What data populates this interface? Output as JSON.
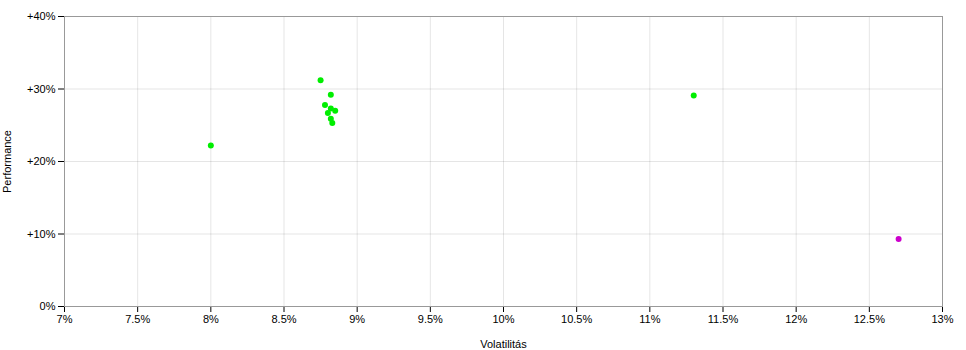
{
  "chart_data": {
    "type": "scatter",
    "xlabel": "Volatilitás",
    "ylabel": "Performance",
    "xlim": [
      0.07,
      0.13
    ],
    "ylim": [
      0.0,
      0.4
    ],
    "xticks": [
      {
        "value": 0.07,
        "label": "7%"
      },
      {
        "value": 0.075,
        "label": "7.5%"
      },
      {
        "value": 0.08,
        "label": "8%"
      },
      {
        "value": 0.085,
        "label": "8.5%"
      },
      {
        "value": 0.09,
        "label": "9%"
      },
      {
        "value": 0.095,
        "label": "9.5%"
      },
      {
        "value": 0.1,
        "label": "10%"
      },
      {
        "value": 0.105,
        "label": "10.5%"
      },
      {
        "value": 0.11,
        "label": "11%"
      },
      {
        "value": 0.115,
        "label": "11.5%"
      },
      {
        "value": 0.12,
        "label": "12%"
      },
      {
        "value": 0.125,
        "label": "12.5%"
      },
      {
        "value": 0.13,
        "label": "13%"
      }
    ],
    "yticks": [
      {
        "value": 0.0,
        "label": "0%"
      },
      {
        "value": 0.1,
        "label": "+10%"
      },
      {
        "value": 0.2,
        "label": "+20%"
      },
      {
        "value": 0.3,
        "label": "+30%"
      },
      {
        "value": 0.4,
        "label": "+40%"
      }
    ],
    "grid": true,
    "series": [
      {
        "color": "#00ee00",
        "x": [
          0.0875,
          0.0882,
          0.0878,
          0.0882,
          0.0885,
          0.088,
          0.0882,
          0.0883,
          0.08,
          0.113
        ],
        "values": [
          0.312,
          0.292,
          0.278,
          0.273,
          0.27,
          0.267,
          0.259,
          0.253,
          0.222,
          0.291
        ]
      },
      {
        "color": "#cc00cc",
        "x": [
          0.127
        ],
        "values": [
          0.093
        ]
      }
    ]
  }
}
